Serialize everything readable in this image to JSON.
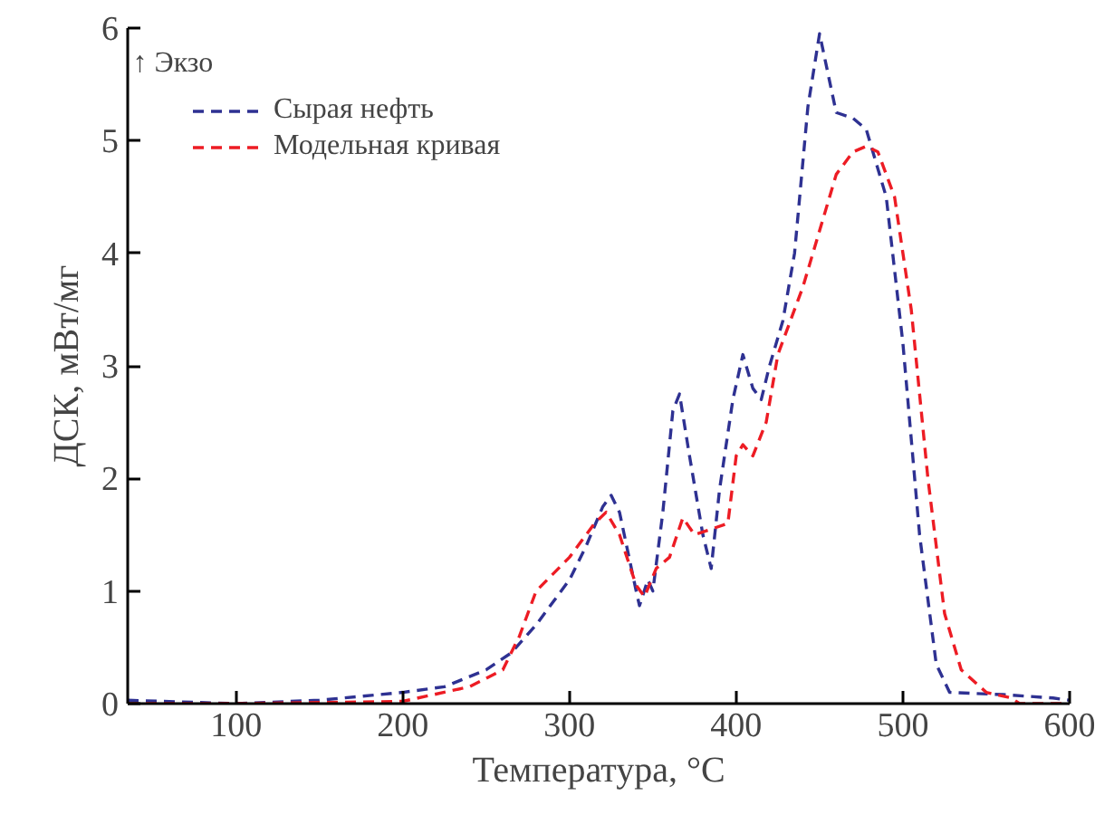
{
  "chart_data": {
    "type": "line",
    "xlabel": "Температура, °C",
    "ylabel": "ДСК, мВт/мг",
    "xlim": [
      35,
      600
    ],
    "ylim": [
      0,
      6
    ],
    "xticks": [
      100,
      200,
      300,
      400,
      500,
      600
    ],
    "yticks": [
      0,
      1,
      2,
      3,
      4,
      5,
      6
    ],
    "grid": false,
    "legend": "top left",
    "line_style": "dashed",
    "marker": "none",
    "annotations": [
      "↑ Экзо"
    ],
    "series": [
      {
        "name": "Сырая нефть",
        "color": "#2e3192",
        "x": [
          35,
          100,
          150,
          200,
          225,
          250,
          265,
          280,
          300,
          310,
          320,
          325,
          330,
          340,
          342,
          347,
          350,
          356,
          362,
          366,
          372,
          380,
          385,
          390,
          398,
          404,
          410,
          415,
          420,
          428,
          435,
          443,
          450,
          455,
          460,
          470,
          478,
          490,
          500,
          510,
          520,
          528,
          560,
          590,
          600
        ],
        "values": [
          0.03,
          0.0,
          0.03,
          0.1,
          0.15,
          0.3,
          0.45,
          0.7,
          1.1,
          1.4,
          1.75,
          1.85,
          1.7,
          1.0,
          0.87,
          1.1,
          1.0,
          1.7,
          2.6,
          2.75,
          2.2,
          1.5,
          1.2,
          1.9,
          2.7,
          3.1,
          2.8,
          2.7,
          3.0,
          3.4,
          4.0,
          5.3,
          5.95,
          5.6,
          5.25,
          5.2,
          5.1,
          4.5,
          3.2,
          1.5,
          0.35,
          0.1,
          0.08,
          0.05,
          0.03
        ]
      },
      {
        "name": "Модельная кривая",
        "color": "#ed1c24",
        "x": [
          35,
          100,
          200,
          240,
          260,
          270,
          280,
          300,
          315,
          322,
          330,
          340,
          345,
          352,
          360,
          368,
          375,
          385,
          395,
          400,
          404,
          410,
          418,
          425,
          440,
          450,
          460,
          470,
          478,
          485,
          495,
          505,
          515,
          525,
          535,
          550,
          565,
          570,
          600
        ],
        "values": [
          0.0,
          0.0,
          0.02,
          0.15,
          0.3,
          0.6,
          1.0,
          1.3,
          1.6,
          1.7,
          1.5,
          1.05,
          0.95,
          1.2,
          1.3,
          1.65,
          1.5,
          1.55,
          1.6,
          2.2,
          2.3,
          2.2,
          2.5,
          3.1,
          3.7,
          4.2,
          4.7,
          4.9,
          4.95,
          4.9,
          4.5,
          3.5,
          2.0,
          0.8,
          0.3,
          0.1,
          0.05,
          0.0,
          0.0
        ]
      }
    ]
  }
}
